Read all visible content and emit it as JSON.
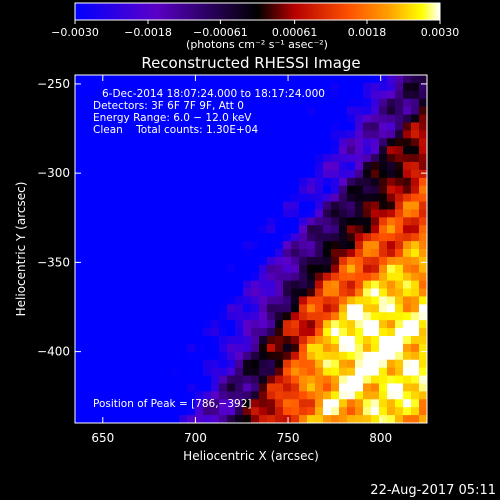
{
  "chart_data": {
    "type": "heatmap",
    "title": "Reconstructed RHESSI Image",
    "xlabel": "Heliocentric X (arcsec)",
    "ylabel": "Heliocentric Y (arcsec)",
    "xlim": [
      635,
      825
    ],
    "ylim": [
      -440,
      -245
    ],
    "x_ticks": [
      650,
      700,
      750,
      800
    ],
    "x_tick_labels": [
      "650",
      "700",
      "750",
      "800"
    ],
    "y_ticks": [
      -250,
      -300,
      -350,
      -400
    ],
    "y_tick_labels": [
      "−250",
      "−300",
      "−350",
      "−400"
    ],
    "colorbar": {
      "range": [
        -0.003,
        0.003
      ],
      "tick_values": [
        -0.003,
        -0.0018,
        -0.00061,
        0.00061,
        0.0018,
        0.003
      ],
      "tick_labels": [
        "−0.0030",
        "−0.0018",
        "−0.00061",
        "0.00061",
        "0.0018",
        "0.0030"
      ],
      "units_label": "(photons cm⁻² s⁻¹ asec⁻²)",
      "colors": [
        "#0000ff",
        "#5a00c8",
        "#000000",
        "#b40000",
        "#ff5000",
        "#ffa000",
        "#ffff00",
        "#ffffff"
      ]
    },
    "annotations": {
      "time_range": "6-Dec-2014 18:07:24.000 to 18:17:24.000",
      "detectors": "Detectors: 3F 6F 7F 9F, Att 0",
      "energy_range": "Energy Range: 6.0 − 12.0 keV",
      "clean_counts": "Clean    Total counts: 1.30E+04",
      "peak_position": "Position of Peak = [786,−392]"
    },
    "peak": [
      786,
      -392
    ]
  },
  "footer_timestamp": "22-Aug-2017 05:11"
}
